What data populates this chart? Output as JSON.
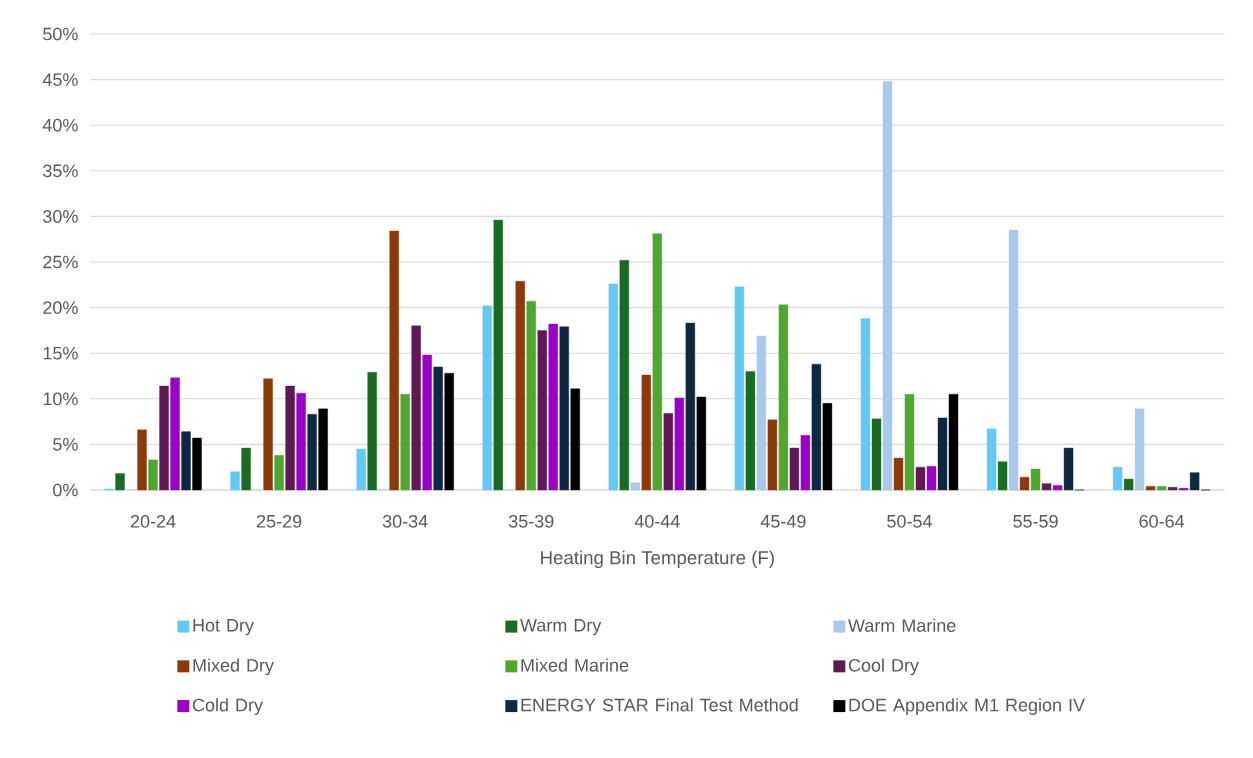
{
  "chart_data": {
    "type": "bar",
    "xlabel": "Heating Bin Temperature (F)",
    "categories": [
      "20-24",
      "25-29",
      "30-34",
      "35-39",
      "40-44",
      "45-49",
      "50-54",
      "55-59",
      "60-64"
    ],
    "series": [
      {
        "name": "Hot Dry",
        "color": "#63c9f2",
        "values": [
          0.1,
          2.0,
          4.5,
          20.2,
          22.6,
          22.3,
          18.8,
          6.7,
          2.5
        ]
      },
      {
        "name": "Warm Dry",
        "color": "#1b6b24",
        "values": [
          1.8,
          4.6,
          12.9,
          29.6,
          25.2,
          13.0,
          7.8,
          3.1,
          1.2
        ]
      },
      {
        "name": "Warm Marine",
        "color": "#a8caec",
        "values": [
          0,
          0,
          0,
          0,
          0.8,
          16.9,
          44.8,
          28.5,
          8.9
        ]
      },
      {
        "name": "Mixed Dry",
        "color": "#8b3a0b",
        "values": [
          6.6,
          12.2,
          28.4,
          22.9,
          12.6,
          7.7,
          3.5,
          1.4,
          0.4
        ]
      },
      {
        "name": "Mixed Marine",
        "color": "#4ea72e",
        "values": [
          3.3,
          3.8,
          10.5,
          20.7,
          28.1,
          20.3,
          10.5,
          2.3,
          0.4
        ]
      },
      {
        "name": "Cool Dry",
        "color": "#5f1a55",
        "values": [
          11.4,
          11.4,
          18.0,
          17.5,
          8.4,
          4.6,
          2.5,
          0.7,
          0.3
        ]
      },
      {
        "name": "Cold Dry",
        "color": "#9a00c8",
        "values": [
          12.3,
          10.6,
          14.8,
          18.2,
          10.1,
          6.0,
          2.6,
          0.5,
          0.2
        ]
      },
      {
        "name": "ENERGY STAR Final Test Method",
        "color": "#0e2841",
        "values": [
          6.4,
          8.3,
          13.5,
          17.9,
          18.3,
          13.8,
          7.9,
          4.6,
          1.9
        ]
      },
      {
        "name": "DOE Appendix M1 Region IV",
        "color": "#000000",
        "values": [
          5.7,
          8.9,
          12.8,
          11.1,
          10.2,
          9.5,
          10.5,
          0,
          0
        ]
      }
    ],
    "ylim": [
      0,
      50
    ],
    "yticks": [
      {
        "value": 0,
        "label": "0%"
      },
      {
        "value": 5,
        "label": "5%"
      },
      {
        "value": 10,
        "label": "10%"
      },
      {
        "value": 15,
        "label": "15%"
      },
      {
        "value": 20,
        "label": "20%"
      },
      {
        "value": 25,
        "label": "25%"
      },
      {
        "value": 30,
        "label": "30%"
      },
      {
        "value": 35,
        "label": "35%"
      },
      {
        "value": 40,
        "label": "40%"
      },
      {
        "value": 45,
        "label": "45%"
      },
      {
        "value": 50,
        "label": "50%"
      }
    ],
    "grid": "y",
    "legend": "bottom"
  }
}
